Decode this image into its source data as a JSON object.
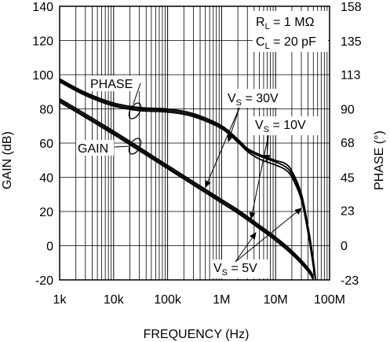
{
  "chart_data": {
    "type": "line",
    "title": "",
    "xlabel": "FREQUENCY (Hz)",
    "ylabel_left": "GAIN (dB)",
    "ylabel_right": "PHASE (°)",
    "x_scale": "log",
    "xlim": [
      1000,
      100000000
    ],
    "ylim_left": [
      -20,
      140
    ],
    "ylim_right": [
      -23,
      158
    ],
    "x_ticks": [
      {
        "value": 1000,
        "label": "1k"
      },
      {
        "value": 10000,
        "label": "10k"
      },
      {
        "value": 100000,
        "label": "100k"
      },
      {
        "value": 1000000,
        "label": "1M"
      },
      {
        "value": 10000000,
        "label": "10M"
      },
      {
        "value": 100000000,
        "label": "100M"
      }
    ],
    "y_ticks_left": [
      {
        "value": -20,
        "label": "-20"
      },
      {
        "value": 0,
        "label": "0"
      },
      {
        "value": 20,
        "label": "20"
      },
      {
        "value": 40,
        "label": "40"
      },
      {
        "value": 60,
        "label": "60"
      },
      {
        "value": 80,
        "label": "80"
      },
      {
        "value": 100,
        "label": "100"
      },
      {
        "value": 120,
        "label": "120"
      },
      {
        "value": 140,
        "label": "140"
      }
    ],
    "y_ticks_right": [
      {
        "value": -23,
        "label": "-23"
      },
      {
        "value": 0,
        "label": "0"
      },
      {
        "value": 23,
        "label": "23"
      },
      {
        "value": 45,
        "label": "45"
      },
      {
        "value": 68,
        "label": "68"
      },
      {
        "value": 90,
        "label": "90"
      },
      {
        "value": 113,
        "label": "113"
      },
      {
        "value": 135,
        "label": "135"
      },
      {
        "value": 158,
        "label": "158"
      }
    ],
    "grid": "log-minor-vertical",
    "conditions": {
      "rl_main": "R",
      "rl_sub": "L",
      "rl_value": " = 1 MΩ",
      "cl_main": "C",
      "cl_sub": "L",
      "cl_value": " = 20 pF"
    },
    "curve_labels": {
      "phase": "PHASE",
      "gain": "GAIN",
      "vs_main": "V",
      "vs_sub": "S",
      "vs30": " = 30V",
      "vs10": " = 10V",
      "vs5": " = 5V"
    },
    "series": [
      {
        "group": "gain",
        "x": [
          1000,
          10000,
          100000,
          1000000,
          2000000,
          5000000,
          10000000,
          20000000,
          40000000,
          50000000
        ],
        "y": [
          86,
          67,
          47,
          27,
          21,
          12,
          5,
          -3,
          -13,
          -18
        ]
      },
      {
        "group": "gain",
        "x": [
          1000,
          10000,
          100000,
          1000000,
          2000000,
          5000000,
          10000000,
          20000000,
          40000000,
          50000000
        ],
        "y": [
          85,
          66,
          46,
          26,
          20,
          11,
          4,
          -4,
          -14,
          -19
        ]
      },
      {
        "group": "gain",
        "x": [
          1000,
          10000,
          100000,
          1000000,
          2000000,
          5000000,
          10000000,
          20000000,
          40000000,
          50000000
        ],
        "y": [
          84,
          65,
          45,
          25,
          19,
          10,
          3,
          -5,
          -15,
          -20
        ]
      },
      {
        "group": "phase",
        "x": [
          1000,
          3000,
          10000,
          30000,
          100000,
          300000,
          1000000,
          2000000,
          3000000,
          5000000,
          10000000,
          15000000,
          20000000,
          30000000,
          40000000,
          50000000,
          55000000
        ],
        "y": [
          110,
          101,
          94,
          91,
          90,
          87,
          79,
          70,
          64,
          60,
          56,
          54,
          49,
          34,
          12,
          -10,
          -23
        ]
      },
      {
        "group": "phase",
        "x": [
          1000,
          3000,
          10000,
          30000,
          100000,
          300000,
          1000000,
          2000000,
          3000000,
          5000000,
          10000000,
          15000000,
          20000000,
          30000000,
          40000000,
          50000000,
          55000000
        ],
        "y": [
          109,
          100,
          93,
          90,
          89,
          86,
          78,
          69,
          63,
          59,
          55,
          52,
          47,
          32,
          10,
          -12,
          -23
        ]
      },
      {
        "group": "phase",
        "x": [
          1000,
          3000,
          10000,
          30000,
          100000,
          300000,
          1000000,
          2000000,
          3000000,
          5000000,
          10000000,
          15000000,
          20000000,
          30000000,
          40000000,
          50000000,
          55000000
        ],
        "y": [
          108,
          99,
          92,
          89,
          88,
          85,
          77,
          68,
          62,
          57,
          53,
          50,
          45,
          30,
          8,
          -14,
          -23
        ]
      }
    ]
  }
}
